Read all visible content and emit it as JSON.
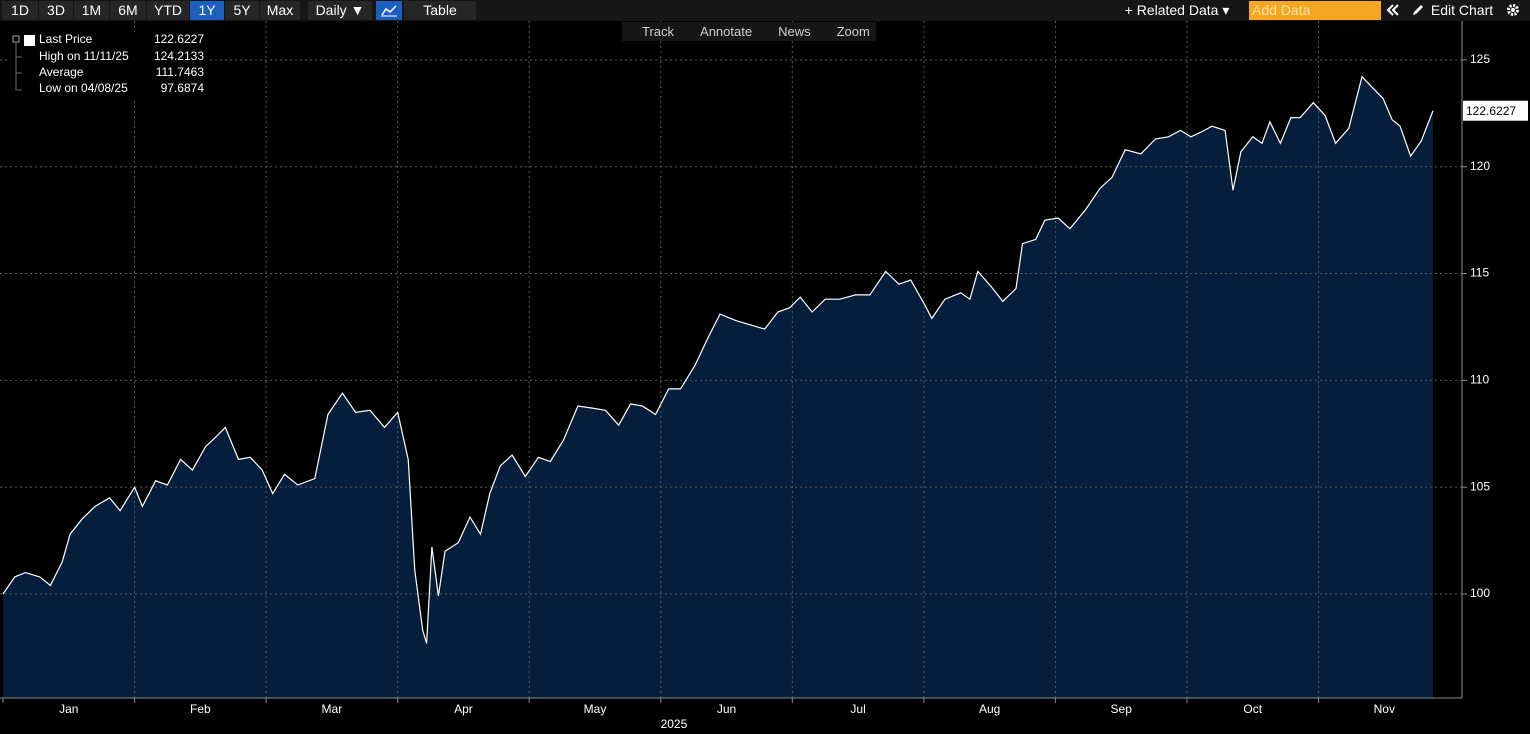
{
  "toolbar": {
    "periods": [
      "1D",
      "3D",
      "1M",
      "6M",
      "YTD",
      "1Y",
      "5Y",
      "Max"
    ],
    "active_period": 5,
    "frequency": "Daily ▼",
    "table": "Table",
    "related": "+ Related Data ▾",
    "add_data": "Add Data",
    "edit": "Edit Chart"
  },
  "chart_tools": [
    "Track",
    "Annotate",
    "News",
    "Zoom"
  ],
  "chart_data": {
    "type": "area",
    "series_name": "Last Price",
    "color": "#ffffff",
    "area_color": "#041e3c",
    "legend": {
      "last": "Last Price",
      "high": "High on 11/11/25",
      "average": "Average",
      "low": "Low on 04/08/25",
      "average_value": 111.7463
    },
    "high_index": 114,
    "low_index": 36,
    "x_label": "2025",
    "xlim": [
      0,
      10.87
    ],
    "xticks": [
      {
        "value": 0,
        "label": "Jan"
      },
      {
        "value": 1,
        "label": "Feb"
      },
      {
        "value": 2,
        "label": "Mar"
      },
      {
        "value": 3,
        "label": "Apr"
      },
      {
        "value": 4,
        "label": "May"
      },
      {
        "value": 5,
        "label": "Jun"
      },
      {
        "value": 6,
        "label": "Jul"
      },
      {
        "value": 7,
        "label": "Aug"
      },
      {
        "value": 8,
        "label": "Sep"
      },
      {
        "value": 9,
        "label": "Oct"
      },
      {
        "value": 10,
        "label": "Nov"
      }
    ],
    "ylim": [
      95.13,
      126.87
    ],
    "yticks": [
      100,
      105,
      110,
      115,
      120,
      125
    ],
    "grid": true,
    "x": [
      0,
      0.09,
      0.17,
      0.28,
      0.36,
      0.45,
      0.51,
      0.6,
      0.7,
      0.81,
      0.89,
      1.0,
      1.06,
      1.16,
      1.25,
      1.35,
      1.44,
      1.54,
      1.61,
      1.69,
      1.79,
      1.88,
      1.97,
      2.05,
      2.14,
      2.24,
      2.37,
      2.47,
      2.58,
      2.68,
      2.79,
      2.9,
      3.0,
      3.08,
      3.13,
      3.19,
      3.22,
      3.26,
      3.31,
      3.36,
      3.46,
      3.55,
      3.63,
      3.7,
      3.78,
      3.87,
      3.97,
      4.07,
      4.16,
      4.26,
      4.37,
      4.48,
      4.58,
      4.68,
      4.77,
      4.86,
      4.96,
      5.06,
      5.15,
      5.26,
      5.36,
      5.45,
      5.57,
      5.68,
      5.79,
      5.89,
      5.98,
      6.06,
      6.15,
      6.25,
      6.36,
      6.48,
      6.59,
      6.71,
      6.81,
      6.9,
      7.01,
      7.06,
      7.16,
      7.28,
      7.35,
      7.41,
      7.51,
      7.6,
      7.7,
      7.75,
      7.85,
      7.92,
      8.02,
      8.11,
      8.23,
      8.34,
      8.43,
      8.53,
      8.65,
      8.76,
      8.86,
      8.95,
      9.03,
      9.1,
      9.19,
      9.29,
      9.35,
      9.41,
      9.5,
      9.57,
      9.63,
      9.71,
      9.79,
      9.86,
      9.96,
      10.05,
      10.13,
      10.23,
      10.33,
      10.41,
      10.49,
      10.56,
      10.62,
      10.7,
      10.78,
      10.87
    ],
    "values": [
      100,
      100.8,
      101.0,
      100.8,
      100.4,
      101.5,
      102.8,
      103.5,
      104.1,
      104.5,
      103.9,
      105.0,
      104.1,
      105.3,
      105.1,
      106.3,
      105.8,
      106.9,
      107.3,
      107.8,
      106.3,
      106.4,
      105.8,
      104.7,
      105.6,
      105.1,
      105.4,
      108.4,
      109.4,
      108.5,
      108.6,
      107.8,
      108.5,
      106.3,
      101.1,
      98.3,
      97.6874,
      102.2,
      99.9,
      102.0,
      102.4,
      103.6,
      102.8,
      104.7,
      106.0,
      106.5,
      105.5,
      106.4,
      106.2,
      107.2,
      108.8,
      108.7,
      108.6,
      107.9,
      108.9,
      108.8,
      108.4,
      109.6,
      109.6,
      110.7,
      112.0,
      113.1,
      112.8,
      112.6,
      112.4,
      113.2,
      113.4,
      113.9,
      113.2,
      113.8,
      113.8,
      114.0,
      114.0,
      115.1,
      114.5,
      114.7,
      113.5,
      112.9,
      113.8,
      114.1,
      113.8,
      115.1,
      114.4,
      113.7,
      114.3,
      116.4,
      116.6,
      117.5,
      117.6,
      117.1,
      118.0,
      119.0,
      119.5,
      120.8,
      120.6,
      121.3,
      121.4,
      121.7,
      121.4,
      121.6,
      121.9,
      121.7,
      118.9,
      120.7,
      121.4,
      121.1,
      122.1,
      121.1,
      122.3,
      122.3,
      123.0,
      122.4,
      121.1,
      121.8,
      124.2133,
      123.7,
      123.2,
      122.2,
      121.9,
      120.5,
      121.2,
      122.6227
    ]
  }
}
